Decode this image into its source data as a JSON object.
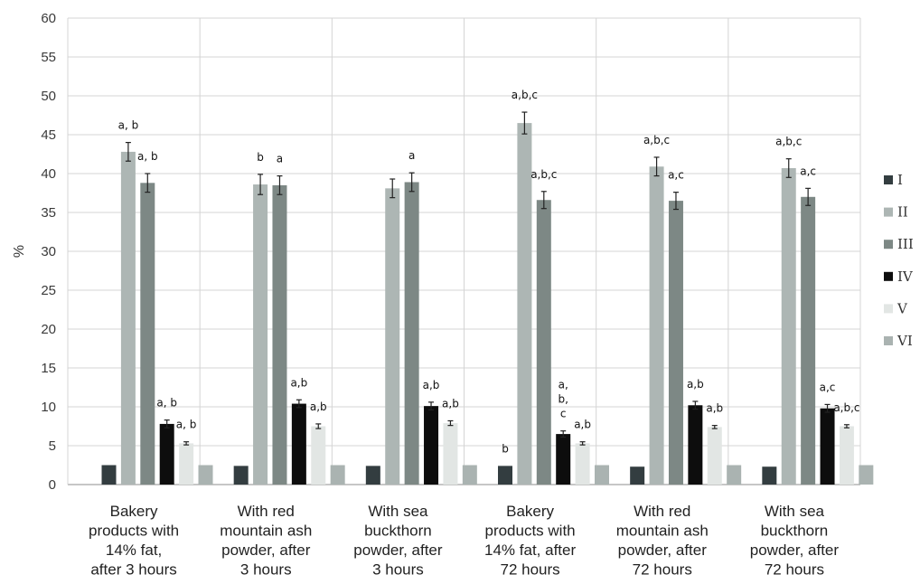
{
  "chart_data": {
    "type": "bar",
    "title": "",
    "xlabel": "",
    "ylabel": "%",
    "ylim": [
      0,
      60
    ],
    "yticks": [
      0,
      5,
      10,
      15,
      20,
      25,
      30,
      35,
      40,
      45,
      50,
      55,
      60
    ],
    "grid": true,
    "legend_position": "right",
    "categories": [
      [
        "Bakery",
        "products with",
        "14% fat,",
        "after 3 hours"
      ],
      [
        "With red",
        "mountain ash",
        "powder, after",
        "3 hours"
      ],
      [
        "With sea",
        "buckthorn",
        "powder, after",
        "3 hours"
      ],
      [
        "Bakery",
        "products with",
        "14% fat, after",
        "72 hours"
      ],
      [
        "With red",
        "mountain ash",
        "powder, after",
        "72 hours"
      ],
      [
        "With sea",
        "buckthorn",
        "powder, after",
        "72 hours"
      ]
    ],
    "series": [
      {
        "name": "I",
        "color": "#333d40",
        "values": [
          2.5,
          2.4,
          2.4,
          2.4,
          2.3,
          2.3
        ],
        "errors": [
          0,
          0,
          0,
          0,
          0,
          0
        ],
        "labels": [
          [],
          [],
          [],
          [
            "b"
          ],
          [],
          []
        ]
      },
      {
        "name": "II",
        "color": "#adb6b4",
        "values": [
          42.8,
          38.6,
          38.1,
          46.5,
          40.9,
          40.7
        ],
        "errors": [
          1.2,
          1.3,
          1.2,
          1.4,
          1.2,
          1.2
        ],
        "labels": [
          [
            "a, b"
          ],
          [
            "b"
          ],
          [],
          [
            "a,b,c"
          ],
          [
            "a,b,c"
          ],
          [
            "a,b,c"
          ]
        ]
      },
      {
        "name": "III",
        "color": "#7d8885",
        "values": [
          38.8,
          38.5,
          38.9,
          36.6,
          36.5,
          37.0
        ],
        "errors": [
          1.2,
          1.2,
          1.2,
          1.1,
          1.1,
          1.1
        ],
        "labels": [
          [
            "a, b"
          ],
          [
            "a"
          ],
          [
            "a"
          ],
          [
            "a,b,c"
          ],
          [
            "a,c"
          ],
          [
            "a,c"
          ]
        ]
      },
      {
        "name": "IV",
        "color": "#0d0d0d",
        "values": [
          7.8,
          10.4,
          10.1,
          6.5,
          10.2,
          9.8
        ],
        "errors": [
          0.5,
          0.5,
          0.5,
          0.4,
          0.5,
          0.5
        ],
        "labels": [
          [
            "a, b"
          ],
          [
            "a,b"
          ],
          [
            "a,b"
          ],
          [
            "a,",
            "b,",
            "c"
          ],
          [
            "a,b"
          ],
          [
            "a,c"
          ]
        ]
      },
      {
        "name": "V",
        "color": "#e2e6e4",
        "values": [
          5.3,
          7.5,
          7.9,
          5.3,
          7.4,
          7.5
        ],
        "errors": [
          0.2,
          0.3,
          0.3,
          0.2,
          0.2,
          0.2
        ],
        "labels": [
          [
            "a, b"
          ],
          [
            "a,b"
          ],
          [
            "a,b"
          ],
          [
            "a,b"
          ],
          [
            "a,b"
          ],
          [
            "a,b,c"
          ]
        ]
      },
      {
        "name": "VI",
        "color": "#aab3b1",
        "values": [
          2.5,
          2.5,
          2.5,
          2.5,
          2.5,
          2.5
        ],
        "errors": [
          0,
          0,
          0,
          0,
          0,
          0
        ],
        "labels": [
          [],
          [],
          [],
          [],
          [],
          []
        ]
      }
    ]
  }
}
